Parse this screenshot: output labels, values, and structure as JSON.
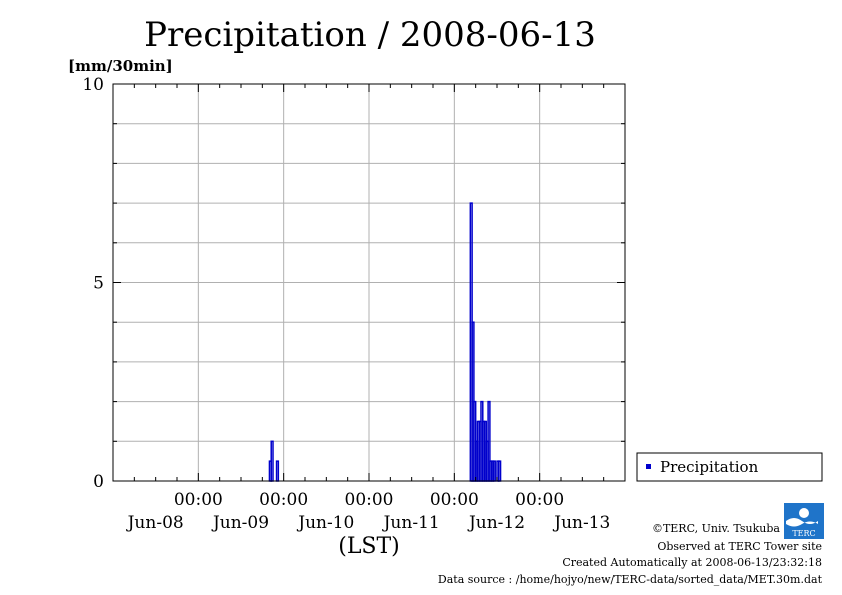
{
  "chart_data": {
    "type": "bar",
    "title": "Precipitation / 2008-06-13",
    "ylabel": "[mm/30min]",
    "xlabel": "(LST)",
    "ylim": [
      0,
      10
    ],
    "y_ticks": [
      "0",
      "5",
      "10"
    ],
    "x_time_labels": [
      "00:00",
      "00:00",
      "00:00",
      "00:00",
      "00:00"
    ],
    "x_date_labels": [
      "Jun-08",
      "Jun-09",
      "Jun-10",
      "Jun-11",
      "Jun-12",
      "Jun-13"
    ],
    "x_start": "2008-06-08 00:00",
    "x_end": "2008-06-13 24:00",
    "grid": true,
    "legend_position": "right",
    "series": [
      {
        "name": "Precipitation",
        "color": "#0000cc",
        "values": [
          {
            "t": "2008-06-09 20:00",
            "y": 0.5
          },
          {
            "t": "2008-06-09 20:30",
            "y": 1.0
          },
          {
            "t": "2008-06-09 22:00",
            "y": 0.5
          },
          {
            "t": "2008-06-12 04:30",
            "y": 7.0
          },
          {
            "t": "2008-06-12 05:00",
            "y": 4.0
          },
          {
            "t": "2008-06-12 05:30",
            "y": 2.0
          },
          {
            "t": "2008-06-12 06:00",
            "y": 1.0
          },
          {
            "t": "2008-06-12 06:30",
            "y": 1.5
          },
          {
            "t": "2008-06-12 07:00",
            "y": 1.5
          },
          {
            "t": "2008-06-12 07:30",
            "y": 2.0
          },
          {
            "t": "2008-06-12 08:00",
            "y": 1.5
          },
          {
            "t": "2008-06-12 08:30",
            "y": 1.5
          },
          {
            "t": "2008-06-12 09:00",
            "y": 1.0
          },
          {
            "t": "2008-06-12 09:30",
            "y": 2.0
          },
          {
            "t": "2008-06-12 10:00",
            "y": 0.5
          },
          {
            "t": "2008-06-12 10:30",
            "y": 0.5
          },
          {
            "t": "2008-06-12 11:00",
            "y": 0.5
          },
          {
            "t": "2008-06-12 12:00",
            "y": 0.5
          },
          {
            "t": "2008-06-12 12:30",
            "y": 0.5
          }
        ]
      }
    ]
  },
  "footer": {
    "copyright": "©TERC, Univ. Tsukuba",
    "observed": "Observed at TERC Tower site",
    "created": "Created Automatically at 2008-06-13/23:32:18",
    "source": "Data source : /home/hojyo/new/TERC-data/sorted_data/MET.30m.dat"
  },
  "logo": {
    "text": "TERC",
    "color": "#1f74c9"
  }
}
